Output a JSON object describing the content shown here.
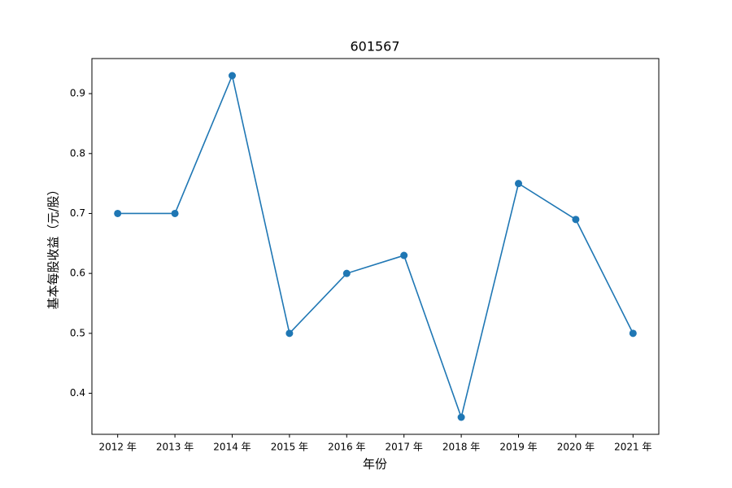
{
  "chart_data": {
    "type": "line",
    "title": "601567",
    "x_label": "年份",
    "y_label": "基本每股收益（元/股）",
    "categories": [
      "2012 年",
      "2013 年",
      "2014 年",
      "2015 年",
      "2016 年",
      "2017 年",
      "2018 年",
      "2019 年",
      "2020 年",
      "2021 年"
    ],
    "series": [
      {
        "name": "基本每股收益",
        "color": "#1f77b4",
        "values": [
          0.7,
          0.7,
          0.93,
          0.5,
          0.6,
          0.63,
          0.36,
          0.75,
          0.69,
          0.5
        ]
      }
    ],
    "ylim": [
      0.3315,
      0.9585
    ],
    "yticks": [
      0.4,
      0.5,
      0.6,
      0.7,
      0.8,
      0.9
    ],
    "grid": false,
    "markers": true
  }
}
